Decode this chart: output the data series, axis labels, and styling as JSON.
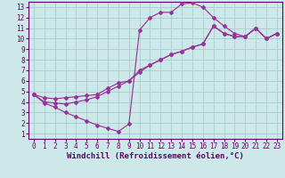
{
  "xlabel": "Windchill (Refroidissement éolien,°C)",
  "bg_color": "#cce8e8",
  "grid_color": "#aacccc",
  "line_color": "#993399",
  "spine_color": "#660066",
  "xlim": [
    -0.5,
    23.5
  ],
  "ylim": [
    0.5,
    13.5
  ],
  "xticks": [
    0,
    1,
    2,
    3,
    4,
    5,
    6,
    7,
    8,
    9,
    10,
    11,
    12,
    13,
    14,
    15,
    16,
    17,
    18,
    19,
    20,
    21,
    22,
    23
  ],
  "yticks": [
    1,
    2,
    3,
    4,
    5,
    6,
    7,
    8,
    9,
    10,
    11,
    12,
    13
  ],
  "curve1_x": [
    0,
    1,
    2,
    3,
    4,
    5,
    6,
    7,
    8,
    9,
    10,
    11,
    12,
    13,
    14,
    15,
    16,
    17,
    18,
    19,
    20,
    21,
    22,
    23
  ],
  "curve1_y": [
    4.7,
    3.9,
    3.5,
    3.0,
    2.6,
    2.2,
    1.8,
    1.5,
    1.2,
    1.9,
    10.8,
    12.0,
    12.5,
    12.5,
    13.3,
    13.4,
    13.0,
    12.0,
    11.2,
    10.5,
    10.2,
    11.0,
    10.0,
    10.5
  ],
  "curve2_x": [
    0,
    1,
    2,
    3,
    4,
    5,
    6,
    7,
    8,
    9,
    10,
    11,
    12,
    13,
    14,
    15,
    16,
    17,
    18,
    19,
    20,
    21,
    22,
    23
  ],
  "curve2_y": [
    4.7,
    4.4,
    4.3,
    4.4,
    4.5,
    4.6,
    4.7,
    5.3,
    5.8,
    6.0,
    7.0,
    7.5,
    8.0,
    8.5,
    8.8,
    9.2,
    9.5,
    11.2,
    10.5,
    10.2,
    10.2,
    11.0,
    10.0,
    10.5
  ],
  "curve3_x": [
    0,
    1,
    2,
    3,
    4,
    5,
    6,
    7,
    8,
    9,
    10,
    11,
    12,
    13,
    14,
    15,
    16,
    17,
    18,
    19,
    20,
    21,
    22,
    23
  ],
  "curve3_y": [
    4.7,
    4.0,
    3.9,
    3.8,
    4.0,
    4.2,
    4.5,
    5.0,
    5.5,
    6.0,
    6.8,
    7.5,
    8.0,
    8.5,
    8.8,
    9.2,
    9.5,
    11.2,
    10.5,
    10.2,
    10.2,
    11.0,
    10.0,
    10.5
  ],
  "tick_fontsize": 5.5,
  "label_fontsize": 6.5
}
